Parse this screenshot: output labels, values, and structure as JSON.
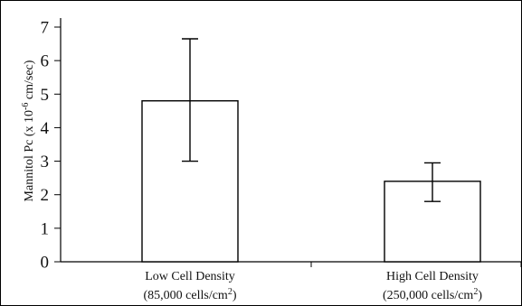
{
  "chart_data": {
    "type": "bar",
    "title": "",
    "xlabel": "",
    "ylabel": "Mannitol Pc (x 10-6 cm/sec)",
    "ylabel_parts": {
      "prefix": "Mannitol Pc (x 10",
      "exponent": "-6",
      "suffix": " cm/sec)"
    },
    "ylim": [
      0,
      7
    ],
    "yticks": [
      "0",
      "1",
      "2",
      "3",
      "4",
      "5",
      "6",
      "7"
    ],
    "grid": false,
    "legend": "none",
    "categories": [
      {
        "line1": "Low Cell Density",
        "line2_prefix": "(85,000 cells/cm",
        "line2_exp": "2",
        "line2_suffix": ")"
      },
      {
        "line1": "High Cell Density",
        "line2_prefix": "(250,000 cells/cm",
        "line2_exp": "2",
        "line2_suffix": ")"
      }
    ],
    "values": [
      4.8,
      2.4
    ],
    "error_bars": [
      {
        "low": 3.0,
        "high": 6.65
      },
      {
        "low": 1.8,
        "high": 2.95
      }
    ],
    "colors": {
      "bar_fill": "#ffffff",
      "bar_stroke": "#000000",
      "axis": "#000000"
    }
  }
}
